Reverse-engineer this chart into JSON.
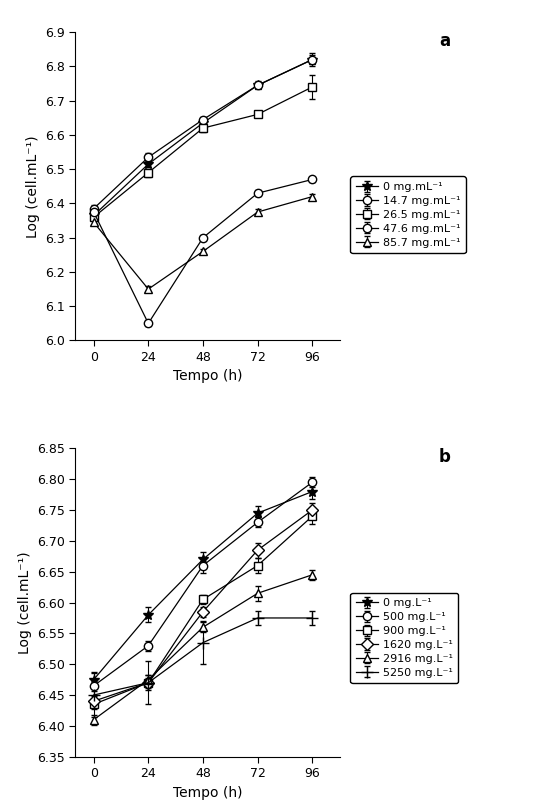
{
  "panel_a": {
    "x": [
      0,
      24,
      48,
      72,
      96
    ],
    "series": [
      {
        "label": "0 mg.mL⁻¹",
        "y": [
          6.365,
          6.515,
          6.635,
          6.745,
          6.82
        ],
        "yerr": [
          0.008,
          0.008,
          0.008,
          0.008,
          0.012
        ],
        "marker": "*",
        "mfc": "black"
      },
      {
        "label": "14.7 mg.mL⁻¹",
        "y": [
          6.385,
          6.535,
          6.645,
          6.745,
          6.82
        ],
        "yerr": [
          0.01,
          0.012,
          0.008,
          0.012,
          0.018
        ],
        "marker": "o",
        "mfc": "white"
      },
      {
        "label": "26.5 mg.mL⁻¹",
        "y": [
          6.36,
          6.49,
          6.62,
          6.66,
          6.74
        ],
        "yerr": [
          0.008,
          0.012,
          0.012,
          0.008,
          0.035
        ],
        "marker": "s",
        "mfc": "white"
      },
      {
        "label": "47.6 mg.mL⁻¹",
        "y": [
          6.375,
          6.05,
          6.3,
          6.43,
          6.47
        ],
        "yerr": [
          0.008,
          0.008,
          0.008,
          0.008,
          0.008
        ],
        "marker": "o",
        "mfc": "white"
      },
      {
        "label": "85.7 mg.mL⁻¹",
        "y": [
          6.345,
          6.15,
          6.26,
          6.375,
          6.42
        ],
        "yerr": [
          0.008,
          0.008,
          0.008,
          0.008,
          0.008
        ],
        "marker": "^",
        "mfc": "white"
      }
    ],
    "ylim": [
      6.0,
      6.9
    ],
    "yticks": [
      6.0,
      6.1,
      6.2,
      6.3,
      6.4,
      6.5,
      6.6,
      6.7,
      6.8,
      6.9
    ],
    "ylabel": "Log (cell.mL⁻¹)",
    "xlabel": "Tempo (h)",
    "panel_label": "a"
  },
  "panel_b": {
    "x": [
      0,
      24,
      48,
      72,
      96
    ],
    "series": [
      {
        "label": "0 mg.L⁻¹",
        "y": [
          6.475,
          6.58,
          6.67,
          6.745,
          6.78
        ],
        "yerr": [
          0.012,
          0.012,
          0.012,
          0.012,
          0.012
        ],
        "marker": "*",
        "mfc": "black"
      },
      {
        "label": "500 mg.L⁻¹",
        "y": [
          6.465,
          6.53,
          6.66,
          6.73,
          6.795
        ],
        "yerr": [
          0.008,
          0.008,
          0.012,
          0.008,
          0.008
        ],
        "marker": "o",
        "mfc": "white"
      },
      {
        "label": "900 mg.L⁻¹",
        "y": [
          6.435,
          6.47,
          6.605,
          6.66,
          6.74
        ],
        "yerr": [
          0.008,
          0.012,
          0.008,
          0.012,
          0.012
        ],
        "marker": "s",
        "mfc": "white"
      },
      {
        "label": "1620 mg.L⁻¹",
        "y": [
          6.44,
          6.47,
          6.585,
          6.685,
          6.75
        ],
        "yerr": [
          0.008,
          0.008,
          0.008,
          0.012,
          0.012
        ],
        "marker": "D",
        "mfc": "white"
      },
      {
        "label": "2916 mg.L⁻¹",
        "y": [
          6.41,
          6.475,
          6.56,
          6.615,
          6.645
        ],
        "yerr": [
          0.008,
          0.008,
          0.008,
          0.012,
          0.008
        ],
        "marker": "^",
        "mfc": "white"
      },
      {
        "label": "5250 mg.L⁻¹",
        "y": [
          6.45,
          6.47,
          6.535,
          6.575,
          6.575
        ],
        "yerr": [
          0.035,
          0.035,
          0.035,
          0.012,
          0.012
        ],
        "marker": "+",
        "mfc": "black"
      }
    ],
    "ylim": [
      6.35,
      6.85
    ],
    "yticks": [
      6.35,
      6.4,
      6.45,
      6.5,
      6.55,
      6.6,
      6.65,
      6.7,
      6.75,
      6.8,
      6.85
    ],
    "ylabel": "Log (cell.mL⁻¹)",
    "xlabel": "Tempo (h)",
    "panel_label": "b"
  }
}
